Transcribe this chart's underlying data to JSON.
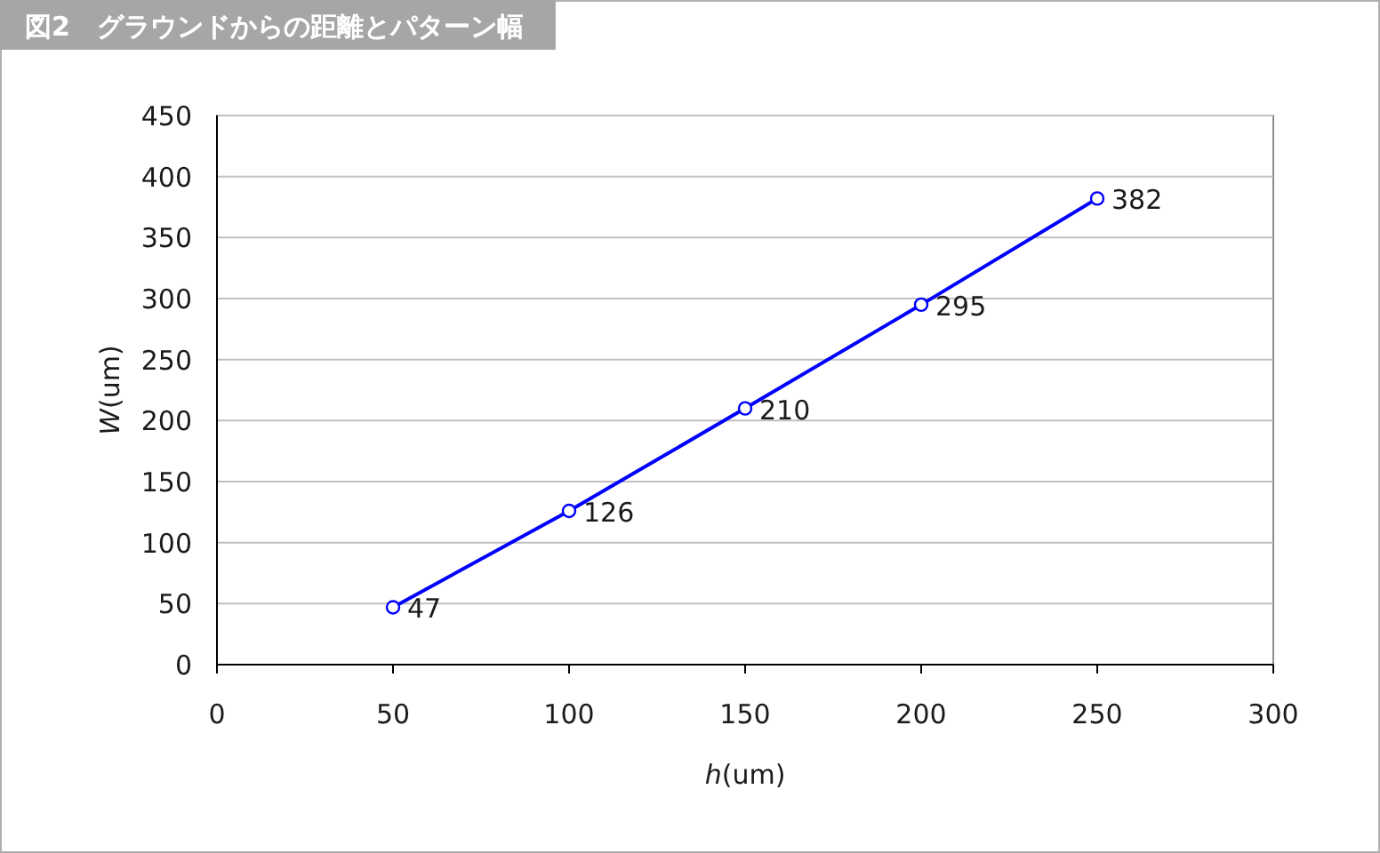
{
  "chart_data": {
    "type": "line",
    "title": "図2　グラウンドからの距離とパターン幅",
    "xlabel": "*h*(um)",
    "ylabel": "*W*(um)",
    "x": [
      50,
      100,
      150,
      200,
      250
    ],
    "series": [
      {
        "color": "#0000ff",
        "values": [
          47,
          126,
          210,
          295,
          382
        ]
      }
    ],
    "xlim": [
      0,
      300
    ],
    "xticks": [
      0,
      50,
      100,
      150,
      200,
      250,
      300
    ],
    "ylim": [
      0,
      450
    ],
    "yticks": [
      0,
      50,
      100,
      150,
      200,
      250,
      300,
      350,
      400,
      450
    ],
    "grid": "y",
    "marker": "circle",
    "line_style": "solid",
    "data_labels": true
  }
}
